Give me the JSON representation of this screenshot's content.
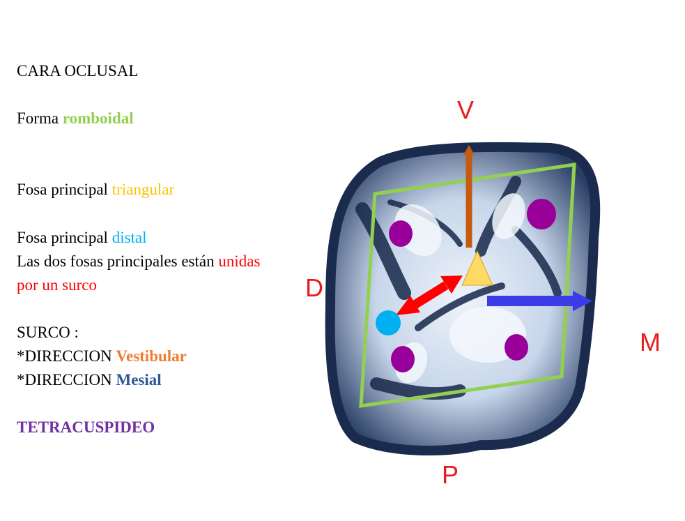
{
  "text": {
    "title": "CARA OCLUSAL",
    "forma_prefix": "Forma ",
    "forma_value": "romboidal",
    "fosa1_prefix": "Fosa principal ",
    "fosa1_value": "triangular",
    "fosa2_prefix": "Fosa principal ",
    "fosa2_value": "distal",
    "union_prefix": "Las dos fosas principales están ",
    "union_value_1": "unidas",
    "union_value_2": "por un surco",
    "surco_title": "SURCO :",
    "dir1_prefix": "*DIRECCION ",
    "dir1_value": "Vestibular",
    "dir2_prefix": "*DIRECCION ",
    "dir2_value": "Mesial",
    "cusp": "TETRACUSPIDEO"
  },
  "labels": {
    "vestibular": "V",
    "distal": "D",
    "mesial": "M",
    "palatino": "P"
  },
  "colors": {
    "outline": "#92d050",
    "vestibular_arrow": "#c55a11",
    "mesial_arrow": "#3c3ce6",
    "groove_arrow": "#ff0000",
    "triangular_fossa": "#ffd966",
    "distal_fossa": "#00b0f0",
    "cusp": "#990099",
    "label": "#e81c1c"
  }
}
